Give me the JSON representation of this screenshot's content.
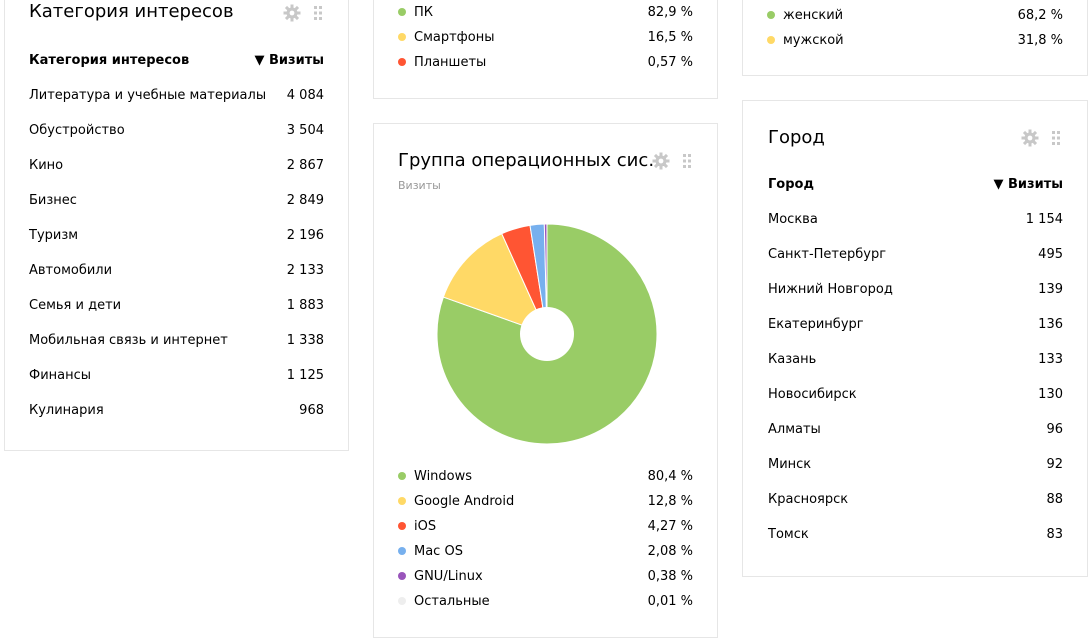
{
  "interests": {
    "title": "Категория интересов",
    "col_name": "Категория интересов",
    "col_value": "▼ Визиты",
    "rows": [
      {
        "name": "Литература и учебные материалы",
        "value": "4 084"
      },
      {
        "name": "Обустройство",
        "value": "3 504"
      },
      {
        "name": "Кино",
        "value": "2 867"
      },
      {
        "name": "Бизнес",
        "value": "2 849"
      },
      {
        "name": "Туризм",
        "value": "2 196"
      },
      {
        "name": "Автомобили",
        "value": "2 133"
      },
      {
        "name": "Семья и дети",
        "value": "1 883"
      },
      {
        "name": "Мобильная связь и интернет",
        "value": "1 338"
      },
      {
        "name": "Финансы",
        "value": "1 125"
      },
      {
        "name": "Кулинария",
        "value": "968"
      }
    ]
  },
  "devices": {
    "items": [
      {
        "label": "ПК",
        "pct": "82,9 %",
        "color": "#99cc66"
      },
      {
        "label": "Смартфоны",
        "pct": "16,5 %",
        "color": "#ffd966"
      },
      {
        "label": "Планшеты",
        "pct": "0,57 %",
        "color": "#ff5533"
      }
    ]
  },
  "gender": {
    "items": [
      {
        "label": "женский",
        "pct": "68,2 %",
        "color": "#99cc66"
      },
      {
        "label": "мужской",
        "pct": "31,8 %",
        "color": "#ffd966"
      }
    ]
  },
  "os": {
    "title": "Группа операционных сис…",
    "subtitle": "Визиты",
    "items": [
      {
        "label": "Windows",
        "pct": "80,4 %",
        "color": "#99cc66"
      },
      {
        "label": "Google Android",
        "pct": "12,8 %",
        "color": "#ffd966"
      },
      {
        "label": "iOS",
        "pct": "4,27 %",
        "color": "#ff5533"
      },
      {
        "label": "Mac OS",
        "pct": "2,08 %",
        "color": "#77b0ee"
      },
      {
        "label": "GNU/Linux",
        "pct": "0,38 %",
        "color": "#9955bb"
      },
      {
        "label": "Остальные",
        "pct": "0,01 %",
        "color": "#eeeeee"
      }
    ]
  },
  "city": {
    "title": "Город",
    "col_name": "Город",
    "col_value": "▼ Визиты",
    "rows": [
      {
        "name": "Москва",
        "value": "1 154"
      },
      {
        "name": "Санкт-Петербург",
        "value": "495"
      },
      {
        "name": "Нижний Новгород",
        "value": "139"
      },
      {
        "name": "Екатеринбург",
        "value": "136"
      },
      {
        "name": "Казань",
        "value": "133"
      },
      {
        "name": "Новосибирск",
        "value": "130"
      },
      {
        "name": "Алматы",
        "value": "96"
      },
      {
        "name": "Минск",
        "value": "92"
      },
      {
        "name": "Красноярск",
        "value": "88"
      },
      {
        "name": "Томск",
        "value": "83"
      }
    ]
  },
  "icons": {
    "settings": "gear-icon",
    "drag": "drag-handle-icon"
  },
  "chart_data": {
    "type": "pie",
    "title": "Группа операционных сис…",
    "subtitle": "Визиты",
    "categories": [
      "Windows",
      "Google Android",
      "iOS",
      "Mac OS",
      "GNU/Linux",
      "Остальные"
    ],
    "values": [
      80.4,
      12.8,
      4.27,
      2.08,
      0.38,
      0.01
    ],
    "colors": [
      "#99cc66",
      "#ffd966",
      "#ff5533",
      "#77b0ee",
      "#9955bb",
      "#eeeeee"
    ],
    "donut": true,
    "legend": "bottom"
  }
}
